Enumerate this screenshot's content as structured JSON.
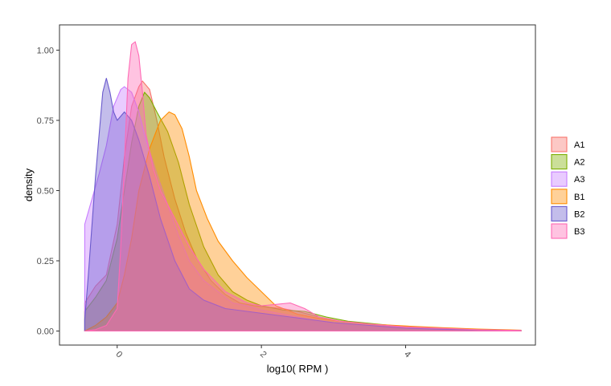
{
  "chart_data": {
    "type": "area",
    "xlabel": "log10( RPM )",
    "ylabel": "density",
    "xlim": [
      -0.8,
      5.8
    ],
    "ylim": [
      -0.05,
      1.09
    ],
    "x_ticks": [
      0,
      2,
      4
    ],
    "x_tick_labels": [
      "0",
      "2",
      "4"
    ],
    "y_ticks": [
      0.0,
      0.25,
      0.5,
      0.75,
      1.0
    ],
    "y_tick_labels": [
      "0.00",
      "0.25",
      "0.50",
      "0.75",
      "1.00"
    ],
    "grid": false,
    "legend_position": "right",
    "series": [
      {
        "name": "A1",
        "color": "#F8766D",
        "x": [
          -0.45,
          -0.3,
          -0.15,
          0.0,
          0.1,
          0.2,
          0.3,
          0.35,
          0.45,
          0.55,
          0.65,
          0.8,
          0.95,
          1.1,
          1.3,
          1.5,
          1.7,
          1.9,
          2.1,
          2.3,
          2.5,
          2.8,
          3.1,
          3.5,
          4.0,
          4.5,
          5.0,
          5.6
        ],
        "y": [
          0.1,
          0.16,
          0.2,
          0.38,
          0.62,
          0.8,
          0.87,
          0.89,
          0.86,
          0.75,
          0.62,
          0.47,
          0.35,
          0.26,
          0.18,
          0.13,
          0.1,
          0.09,
          0.085,
          0.08,
          0.07,
          0.05,
          0.035,
          0.025,
          0.015,
          0.01,
          0.005,
          0.002
        ]
      },
      {
        "name": "A2",
        "color": "#7CAE00",
        "x": [
          -0.45,
          -0.3,
          -0.15,
          0.0,
          0.1,
          0.2,
          0.3,
          0.38,
          0.45,
          0.55,
          0.7,
          0.85,
          1.0,
          1.2,
          1.4,
          1.6,
          1.8,
          2.0,
          2.3,
          2.6,
          2.9,
          3.2,
          3.6,
          4.0,
          4.5,
          5.0,
          5.6
        ],
        "y": [
          0.07,
          0.12,
          0.18,
          0.33,
          0.5,
          0.67,
          0.8,
          0.85,
          0.83,
          0.78,
          0.71,
          0.6,
          0.45,
          0.3,
          0.2,
          0.14,
          0.11,
          0.09,
          0.075,
          0.07,
          0.05,
          0.035,
          0.025,
          0.015,
          0.01,
          0.005,
          0.002
        ]
      },
      {
        "name": "A3",
        "color": "#C77CFF",
        "x": [
          -0.45,
          -0.35,
          -0.25,
          -0.15,
          -0.05,
          0.05,
          0.1,
          0.2,
          0.3,
          0.4,
          0.55,
          0.7,
          0.85,
          1.0,
          1.2,
          1.4,
          1.6,
          1.8,
          2.0,
          2.3,
          2.6,
          3.0,
          3.5,
          4.0,
          4.5,
          5.0,
          5.6
        ],
        "y": [
          0.38,
          0.47,
          0.56,
          0.66,
          0.8,
          0.86,
          0.87,
          0.85,
          0.78,
          0.68,
          0.56,
          0.45,
          0.34,
          0.25,
          0.18,
          0.14,
          0.1,
          0.09,
          0.075,
          0.06,
          0.045,
          0.03,
          0.02,
          0.012,
          0.008,
          0.004,
          0.002
        ]
      },
      {
        "name": "B1",
        "color": "#FF8C00",
        "x": [
          -0.45,
          -0.3,
          -0.15,
          0.0,
          0.1,
          0.2,
          0.3,
          0.45,
          0.6,
          0.72,
          0.8,
          0.9,
          1.0,
          1.1,
          1.25,
          1.4,
          1.6,
          1.8,
          2.0,
          2.2,
          2.5,
          2.8,
          3.1,
          3.5,
          4.0,
          4.5,
          5.0,
          5.6
        ],
        "y": [
          0.0,
          0.02,
          0.05,
          0.1,
          0.2,
          0.33,
          0.5,
          0.65,
          0.75,
          0.78,
          0.77,
          0.72,
          0.62,
          0.5,
          0.4,
          0.32,
          0.25,
          0.19,
          0.14,
          0.09,
          0.06,
          0.045,
          0.035,
          0.025,
          0.018,
          0.012,
          0.007,
          0.003
        ]
      },
      {
        "name": "B2",
        "color": "#6A5ACD",
        "x": [
          -0.45,
          -0.4,
          -0.3,
          -0.2,
          -0.15,
          -0.1,
          -0.05,
          0.0,
          0.1,
          0.2,
          0.3,
          0.45,
          0.6,
          0.8,
          1.0,
          1.2,
          1.5,
          1.8,
          2.1,
          2.4,
          2.7,
          3.0,
          3.5,
          4.0,
          4.5,
          5.0,
          5.6
        ],
        "y": [
          0.04,
          0.2,
          0.55,
          0.85,
          0.9,
          0.85,
          0.78,
          0.75,
          0.78,
          0.75,
          0.68,
          0.55,
          0.4,
          0.25,
          0.15,
          0.11,
          0.08,
          0.07,
          0.06,
          0.05,
          0.04,
          0.03,
          0.02,
          0.01,
          0.006,
          0.004,
          0.002
        ]
      },
      {
        "name": "B3",
        "color": "#FF69B4",
        "x": [
          -0.45,
          -0.3,
          -0.15,
          0.0,
          0.05,
          0.1,
          0.15,
          0.2,
          0.25,
          0.3,
          0.35,
          0.4,
          0.5,
          0.6,
          0.8,
          1.0,
          1.2,
          1.5,
          1.8,
          2.0,
          2.2,
          2.4,
          2.6,
          2.8,
          3.1,
          3.5,
          4.0,
          4.5,
          5.0,
          5.6
        ],
        "y": [
          0.0,
          0.005,
          0.02,
          0.08,
          0.3,
          0.6,
          0.9,
          1.02,
          1.03,
          0.98,
          0.85,
          0.7,
          0.58,
          0.5,
          0.4,
          0.3,
          0.22,
          0.14,
          0.1,
          0.09,
          0.095,
          0.1,
          0.08,
          0.05,
          0.035,
          0.025,
          0.015,
          0.01,
          0.005,
          0.002
        ]
      }
    ]
  }
}
